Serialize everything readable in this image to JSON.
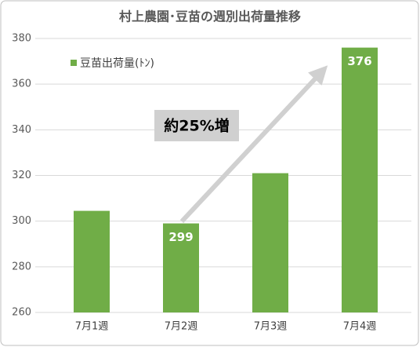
{
  "chart_data": {
    "type": "bar",
    "title": "村上農園･豆苗の週別出荷量推移",
    "categories": [
      "7月1週",
      "7月2週",
      "7月3週",
      "7月4週"
    ],
    "series": [
      {
        "name": "豆苗出荷量(ﾄﾝ)",
        "color": "#70ad47",
        "values": [
          304.5,
          299,
          321,
          376
        ],
        "value_labels": [
          null,
          "299",
          null,
          "376"
        ]
      }
    ],
    "ylim": [
      260,
      380
    ],
    "yticks": [
      260,
      280,
      300,
      320,
      340,
      360,
      380
    ],
    "grid": true,
    "annotation": "約25%増"
  }
}
